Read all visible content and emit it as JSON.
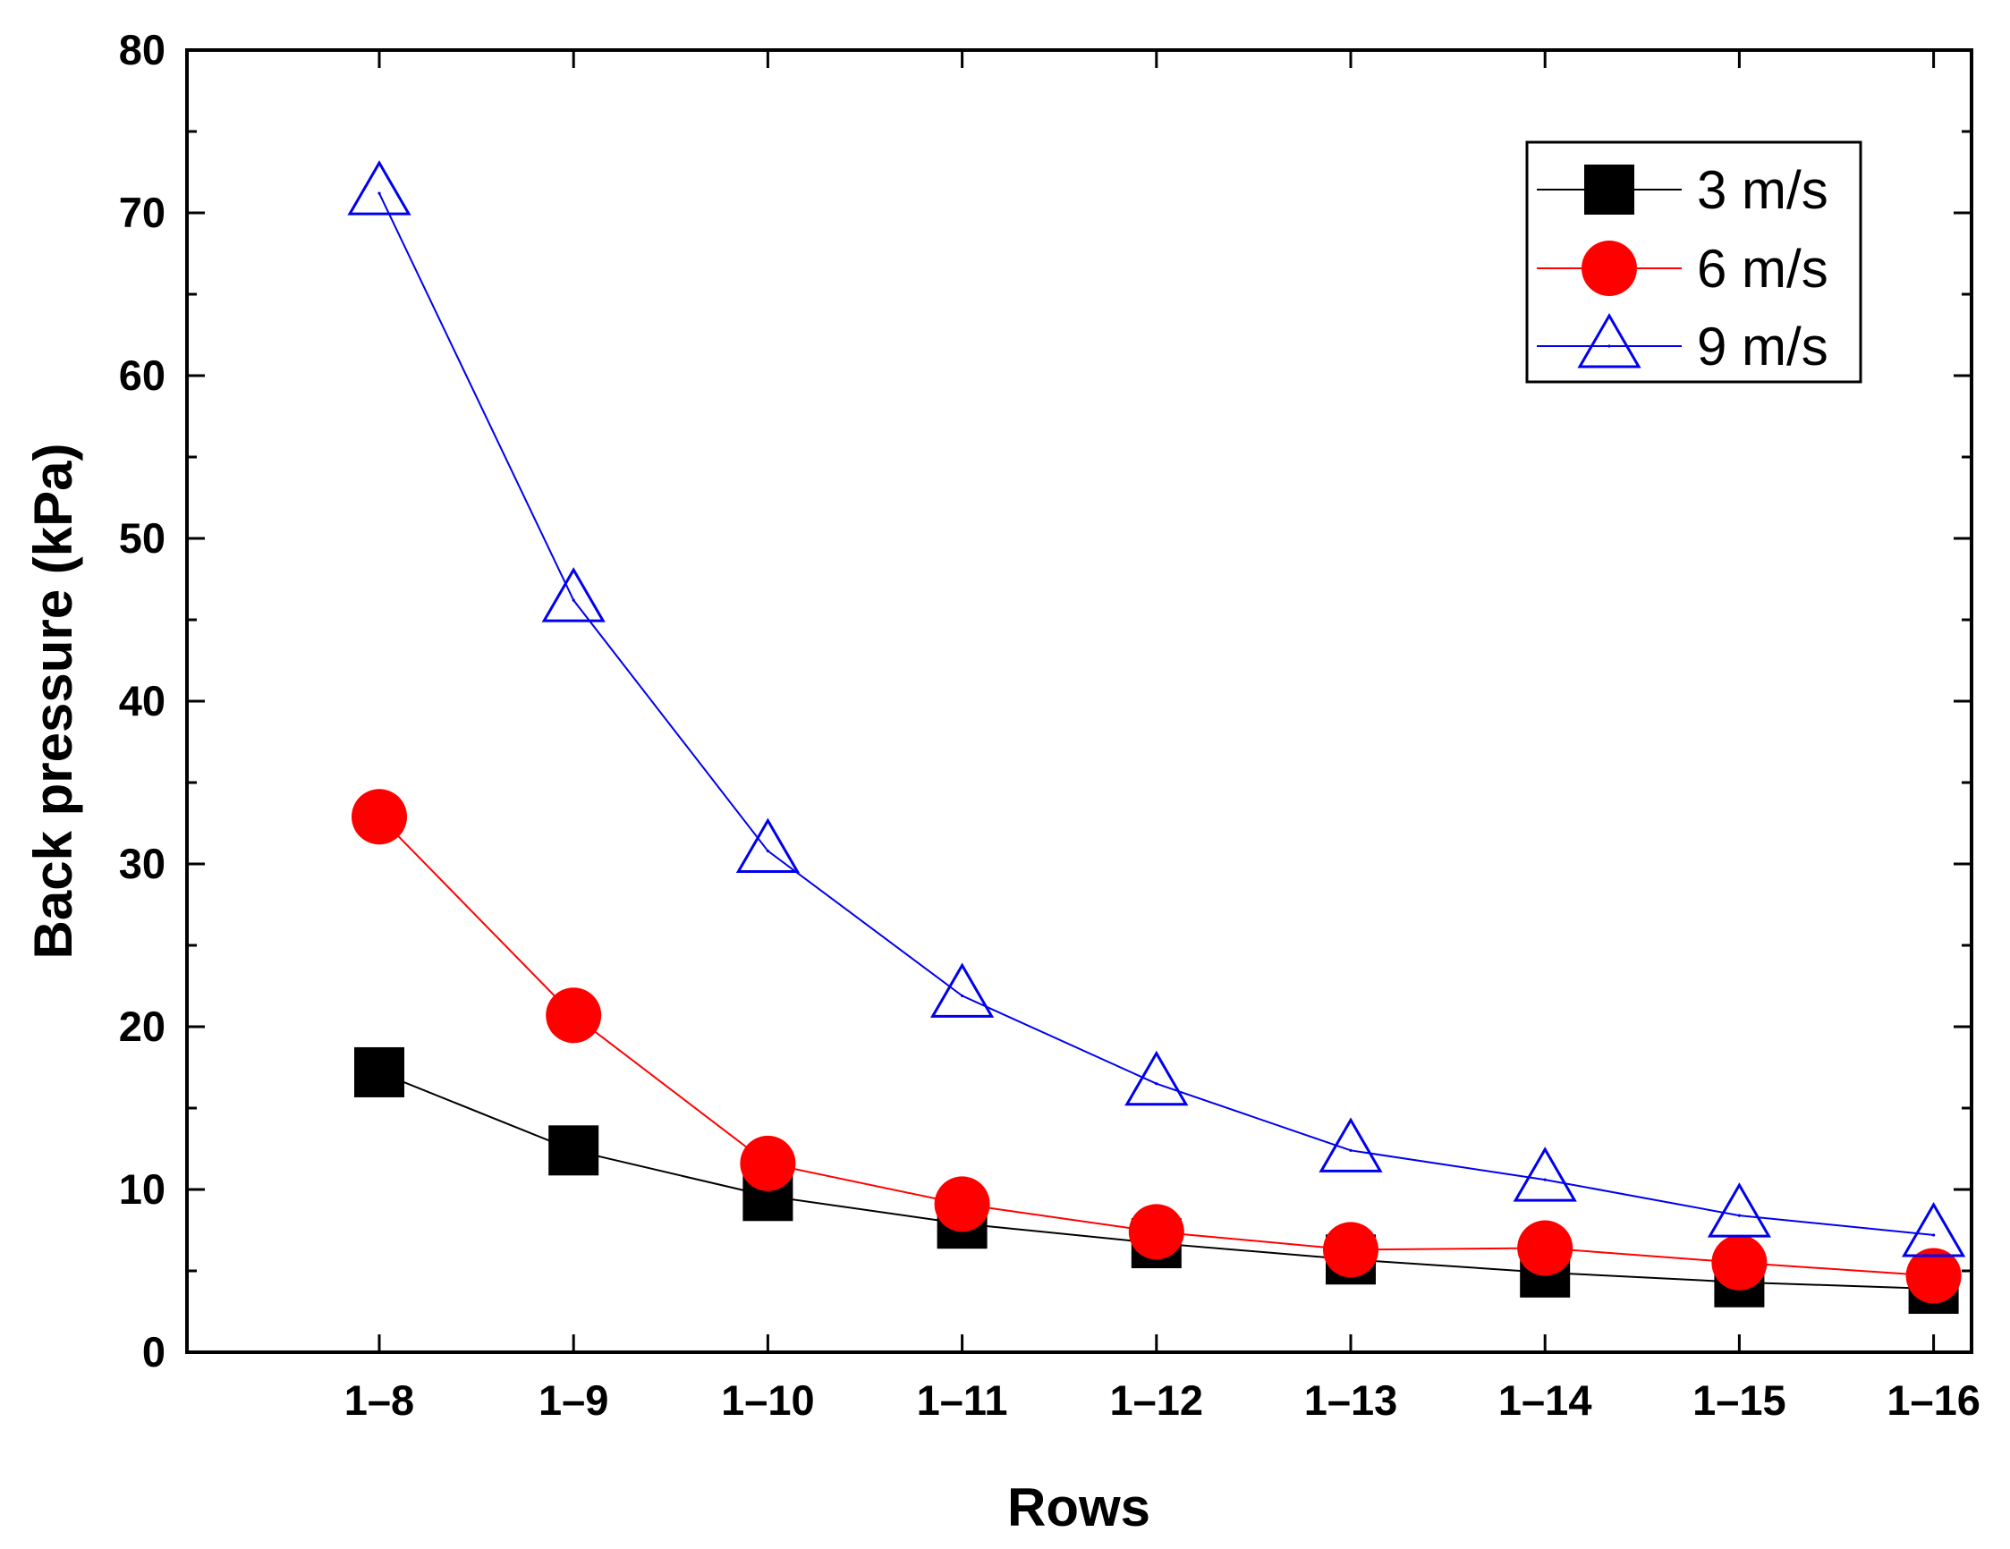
{
  "chart_data": {
    "type": "line",
    "title": "",
    "xlabel": "Rows",
    "ylabel": "Back pressure (kPa)",
    "categories": [
      "1–8",
      "1–9",
      "1–10",
      "1–11",
      "1–12",
      "1–13",
      "1–14",
      "1–15",
      "1–16"
    ],
    "ylim": [
      0,
      80
    ],
    "yticks": [
      0,
      10,
      20,
      30,
      40,
      50,
      60,
      70,
      80
    ],
    "grid": false,
    "legend_position": "top-right",
    "series": [
      {
        "name": "3 m/s",
        "marker": "square",
        "color": "#000000",
        "values": [
          17.2,
          12.4,
          9.6,
          7.9,
          6.7,
          5.7,
          4.9,
          4.3,
          3.9
        ]
      },
      {
        "name": "6 m/s",
        "marker": "circle",
        "color": "#ff0000",
        "values": [
          32.9,
          20.7,
          11.6,
          9.1,
          7.4,
          6.3,
          6.4,
          5.5,
          4.7
        ]
      },
      {
        "name": "9 m/s",
        "marker": "triangle",
        "color": "#0000ee",
        "values": [
          71.2,
          46.2,
          30.8,
          21.9,
          16.5,
          12.4,
          10.6,
          8.4,
          7.2
        ]
      }
    ]
  }
}
